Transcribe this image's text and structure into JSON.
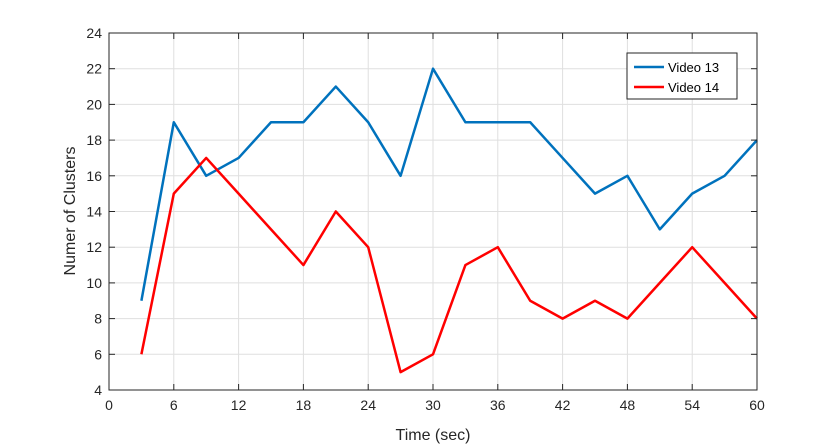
{
  "chart_data": {
    "type": "line",
    "title": "",
    "xlabel": "Time (sec)",
    "ylabel": "Numer of Clusters",
    "xlim": [
      0,
      60
    ],
    "ylim": [
      4,
      24
    ],
    "xticks": [
      0,
      6,
      12,
      18,
      24,
      30,
      36,
      42,
      48,
      54,
      60
    ],
    "yticks": [
      4,
      6,
      8,
      10,
      12,
      14,
      16,
      18,
      20,
      22,
      24
    ],
    "grid": true,
    "legend_position": "top-right",
    "x": [
      3,
      6,
      9,
      12,
      15,
      18,
      21,
      24,
      27,
      30,
      33,
      36,
      39,
      42,
      45,
      48,
      51,
      54,
      57,
      60
    ],
    "series": [
      {
        "name": "Video 13",
        "color": "#0072bd",
        "values": [
          9,
          19,
          16,
          17,
          19,
          19,
          21,
          19,
          16,
          22,
          19,
          19,
          19,
          17,
          15,
          16,
          13,
          15,
          16,
          18
        ]
      },
      {
        "name": "Video 14",
        "color": "#ff0000",
        "values": [
          6,
          15,
          17,
          15,
          13,
          11,
          14,
          12,
          5,
          6,
          11,
          12,
          9,
          8,
          9,
          8,
          10,
          12,
          10,
          8
        ]
      }
    ]
  }
}
